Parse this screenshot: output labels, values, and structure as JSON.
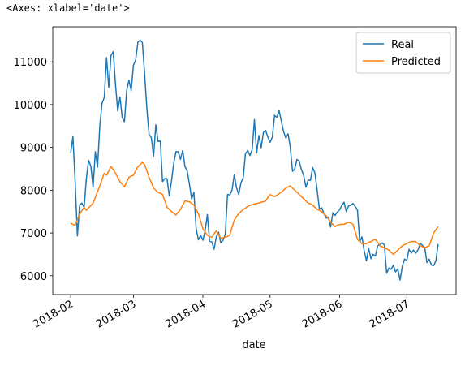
{
  "output_text": "<Axes: xlabel='date'>",
  "chart_data": {
    "type": "line",
    "xlabel": "date",
    "xlim": [
      -8,
      172
    ],
    "xticks": [
      {
        "value": 0,
        "label": "2018-02"
      },
      {
        "value": 28,
        "label": "2018-03"
      },
      {
        "value": 59,
        "label": "2018-04"
      },
      {
        "value": 89,
        "label": "2018-05"
      },
      {
        "value": 120,
        "label": "2018-06"
      },
      {
        "value": 150,
        "label": "2018-07"
      }
    ],
    "ylim": [
      5560,
      11820
    ],
    "yticks": [
      6000,
      7000,
      8000,
      9000,
      10000,
      11000
    ],
    "legend": "upper right",
    "series": [
      {
        "name": "Real",
        "color": "#1f77b4",
        "values": [
          8870,
          9250,
          8200,
          6930,
          7650,
          7700,
          7600,
          8270,
          8700,
          8560,
          8070,
          8900,
          8540,
          9500,
          10030,
          10170,
          11100,
          10400,
          11150,
          11240,
          10480,
          9850,
          10180,
          9700,
          9600,
          10330,
          10570,
          10330,
          10920,
          11040,
          11460,
          11510,
          11450,
          10720,
          9910,
          9300,
          9230,
          8790,
          9530,
          9140,
          9150,
          8200,
          8270,
          8270,
          7870,
          8220,
          8630,
          8900,
          8900,
          8720,
          8930,
          8550,
          8450,
          8140,
          7790,
          7950,
          7100,
          6840,
          6940,
          6830,
          7050,
          7430,
          6810,
          6790,
          6620,
          6910,
          7020,
          6770,
          6830,
          6970,
          7900,
          7890,
          8000,
          8360,
          8060,
          7900,
          8170,
          8290,
          8850,
          8930,
          8810,
          8950,
          9650,
          8870,
          9280,
          8990,
          9350,
          9400,
          9240,
          9120,
          9240,
          9750,
          9700,
          9860,
          9620,
          9370,
          9220,
          9320,
          9010,
          8440,
          8500,
          8720,
          8670,
          8480,
          8340,
          8070,
          8240,
          8230,
          8530,
          8400,
          8000,
          7560,
          7590,
          7460,
          7350,
          7370,
          7140,
          7470,
          7410,
          7490,
          7540,
          7640,
          7720,
          7500,
          7630,
          7650,
          7690,
          7620,
          7530,
          6790,
          6910,
          6580,
          6350,
          6640,
          6400,
          6500,
          6460,
          6700,
          6730,
          6770,
          6720,
          6060,
          6180,
          6150,
          6250,
          6090,
          6160,
          5900,
          6220,
          6390,
          6360,
          6620,
          6530,
          6600,
          6530,
          6600,
          6760,
          6710,
          6660,
          6310,
          6390,
          6250,
          6240,
          6350,
          6740
        ]
      },
      {
        "name": "Predicted",
        "color": "#ff7f0e",
        "values": [
          7230,
          7200,
          7180,
          7310,
          7450,
          7520,
          7600,
          7530,
          7590,
          7640,
          7700,
          7830,
          7970,
          8100,
          8250,
          8400,
          8350,
          8450,
          8550,
          8480,
          8400,
          8300,
          8200,
          8140,
          8080,
          8190,
          8300,
          8330,
          8350,
          8450,
          8550,
          8600,
          8650,
          8600,
          8450,
          8300,
          8180,
          8050,
          8000,
          7950,
          7930,
          7900,
          7750,
          7600,
          7550,
          7500,
          7460,
          7420,
          7490,
          7550,
          7650,
          7750,
          7740,
          7730,
          7690,
          7650,
          7550,
          7450,
          7280,
          7100,
          7020,
          6950,
          6920,
          6900,
          6980,
          7050,
          6960,
          6880,
          6890,
          6900,
          6920,
          6950,
          7130,
          7300,
          7380,
          7450,
          7500,
          7550,
          7580,
          7620,
          7650,
          7660,
          7680,
          7690,
          7700,
          7720,
          7730,
          7750,
          7830,
          7900,
          7870,
          7850,
          7880,
          7920,
          7950,
          8000,
          8050,
          8080,
          8100,
          8050,
          8000,
          7950,
          7900,
          7850,
          7800,
          7750,
          7700,
          7680,
          7650,
          7600,
          7550,
          7530,
          7500,
          7450,
          7400,
          7330,
          7250,
          7200,
          7150,
          7180,
          7200,
          7200,
          7200,
          7230,
          7250,
          7230,
          7200,
          7030,
          6850,
          6800,
          6750,
          6750,
          6750,
          6780,
          6800,
          6830,
          6850,
          6780,
          6700,
          6680,
          6650,
          6630,
          6600,
          6550,
          6500,
          6550,
          6600,
          6650,
          6700,
          6730,
          6750,
          6780,
          6800,
          6800,
          6800,
          6750,
          6700,
          6680,
          6650,
          6680,
          6700,
          6850,
          7000,
          7080,
          7150
        ]
      }
    ]
  }
}
